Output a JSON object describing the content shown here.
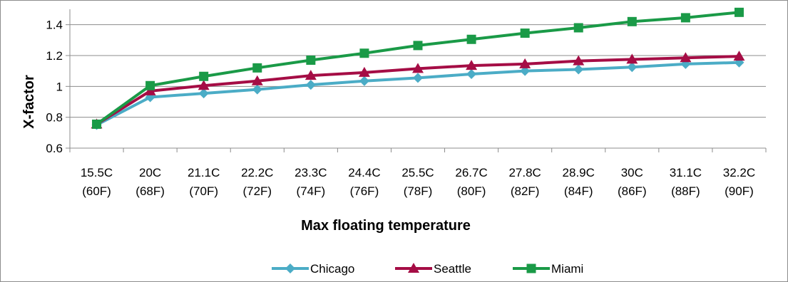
{
  "chart_data": {
    "type": "line",
    "xlabel": "Max floating temperature",
    "ylabel": "X-factor",
    "ylim": [
      0.6,
      1.5
    ],
    "yticks": [
      "0.6",
      "0.8",
      "1",
      "1.2",
      "1.4"
    ],
    "ytick_values": [
      0.6,
      0.8,
      1.0,
      1.2,
      1.4
    ],
    "grid": true,
    "legend_position": "bottom",
    "categories": [
      [
        "15.5C",
        "(60F)"
      ],
      [
        "20C",
        "(68F)"
      ],
      [
        "21.1C",
        "(70F)"
      ],
      [
        "22.2C",
        "(72F)"
      ],
      [
        "23.3C",
        "(74F)"
      ],
      [
        "24.4C",
        "(76F)"
      ],
      [
        "25.5C",
        "(78F)"
      ],
      [
        "26.7C",
        "(80F)"
      ],
      [
        "27.8C",
        "(82F)"
      ],
      [
        "28.9C",
        "(84F)"
      ],
      [
        "30C",
        "(86F)"
      ],
      [
        "31.1C",
        "(88F)"
      ],
      [
        "32.2C",
        "(90F)"
      ]
    ],
    "series": [
      {
        "name": "Chicago",
        "color": "#4bacc6",
        "marker": "diamond",
        "values": [
          0.75,
          0.93,
          0.955,
          0.98,
          1.01,
          1.035,
          1.055,
          1.08,
          1.1,
          1.11,
          1.125,
          1.145,
          1.155
        ]
      },
      {
        "name": "Seattle",
        "color": "#a50d45",
        "marker": "triangle",
        "values": [
          0.755,
          0.97,
          1.005,
          1.035,
          1.07,
          1.09,
          1.115,
          1.135,
          1.145,
          1.165,
          1.175,
          1.185,
          1.195
        ]
      },
      {
        "name": "Miami",
        "color": "#1a9a47",
        "marker": "square",
        "values": [
          0.755,
          1.005,
          1.065,
          1.12,
          1.17,
          1.215,
          1.265,
          1.305,
          1.345,
          1.38,
          1.42,
          1.445,
          1.48
        ]
      }
    ]
  }
}
